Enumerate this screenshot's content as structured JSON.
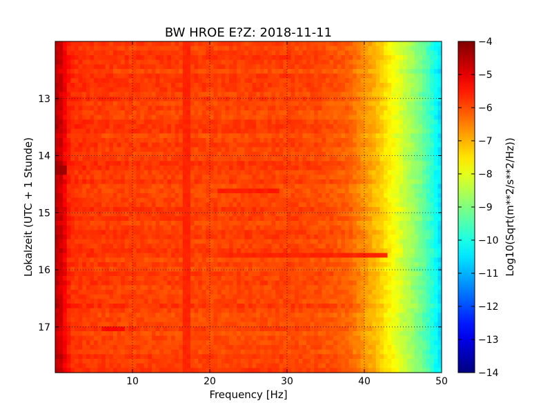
{
  "chart_data": {
    "type": "heatmap",
    "title": "BW HROE E?Z: 2018-11-11",
    "xlabel": "Frequency [Hz]",
    "ylabel": "Lokalzeit (UTC + 1 Stunde)",
    "xlim": [
      0,
      50
    ],
    "ylim": [
      12.0,
      17.8
    ],
    "y_inverted": true,
    "x_ticks": [
      10,
      20,
      30,
      40,
      50
    ],
    "y_ticks": [
      13,
      14,
      15,
      16,
      17
    ],
    "grid": true,
    "grid_style": "dotted",
    "colormap": "jet",
    "colorbar": {
      "label": "Log10(Sqrt(m**2/s**2/Hz))",
      "range": [
        -14,
        -4
      ],
      "ticks": [
        -4,
        -5,
        -6,
        -7,
        -8,
        -9,
        -10,
        -11,
        -12,
        -13,
        -14
      ]
    },
    "spectral_profile": {
      "frequency_hz": [
        0,
        0.5,
        1,
        2,
        5,
        10,
        20,
        30,
        35,
        38,
        40,
        42,
        44,
        46,
        48,
        50
      ],
      "log10_psd": [
        -4.8,
        -4.6,
        -5.0,
        -5.7,
        -5.8,
        -5.85,
        -5.9,
        -5.9,
        -6.0,
        -6.2,
        -6.7,
        -7.2,
        -7.9,
        -8.6,
        -9.4,
        -10.6
      ]
    },
    "features": [
      {
        "frequency_hz": [
          0,
          1.5
        ],
        "time_h": [
          14.2,
          14.3
        ],
        "log10_psd": -4.3
      },
      {
        "frequency_hz": [
          16.5,
          17.5
        ],
        "time_h": [
          12.0,
          17.8
        ],
        "log10_psd": -5.6
      },
      {
        "frequency_hz": [
          21,
          29
        ],
        "time_h": [
          14.6,
          14.65
        ],
        "log10_psd": -5.5
      },
      {
        "frequency_hz": [
          22,
          43
        ],
        "time_h": [
          15.7,
          15.75
        ],
        "log10_psd": -5.6
      },
      {
        "frequency_hz": [
          6,
          9
        ],
        "time_h": [
          17.0,
          17.1
        ],
        "log10_psd": -5.3
      }
    ]
  }
}
